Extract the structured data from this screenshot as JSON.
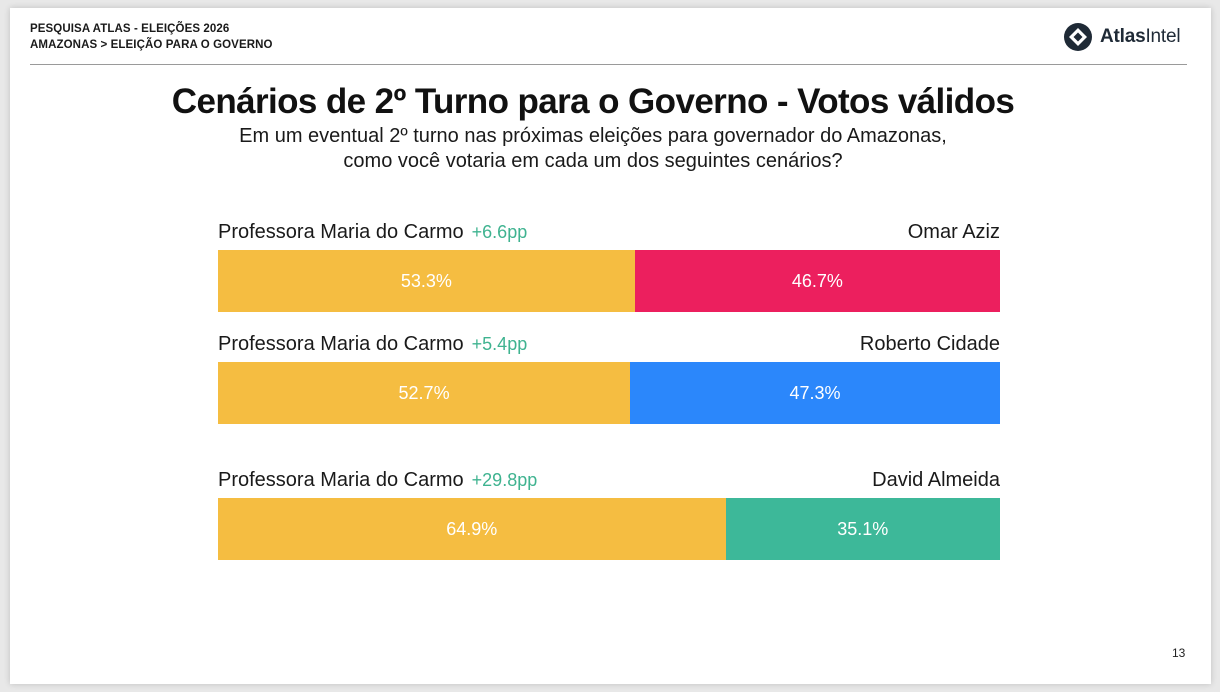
{
  "header": {
    "line1": "PESQUISA ATLAS - ELEIÇÕES 2026",
    "line2": "AMAZONAS > ELEIÇÃO PARA O GOVERNO"
  },
  "logo": {
    "text_bold": "Atlas",
    "text_regular": "Intel",
    "icon": "atlasintel-diamond-icon"
  },
  "page_number": "13",
  "chart_data": {
    "type": "bar",
    "title": "Cenários de 2º Turno para o Governo - Votos válidos",
    "subtitle_line1": "Em um eventual 2º turno nas próximas eleições para governador do Amazonas,",
    "subtitle_line2": "como você votaria em cada um dos seguintes cenários?",
    "orientation": "horizontal-stacked",
    "scenarios": [
      {
        "left_name": "Professora Maria do Carmo",
        "right_name": "Omar Aziz",
        "diff_label": "+6.6pp",
        "left_value": 53.3,
        "right_value": 46.7,
        "left_label": "53.3%",
        "right_label": "46.7%",
        "left_color": "#f5bd41",
        "right_color": "#ec1f5e"
      },
      {
        "left_name": "Professora Maria do Carmo",
        "right_name": "Roberto Cidade",
        "diff_label": "+5.4pp",
        "left_value": 52.7,
        "right_value": 47.3,
        "left_label": "52.7%",
        "right_label": "47.3%",
        "left_color": "#f5bd41",
        "right_color": "#2b87fb"
      },
      {
        "left_name": "Professora Maria do Carmo",
        "right_name": "David Almeida",
        "diff_label": "+29.8pp",
        "left_value": 64.9,
        "right_value": 35.1,
        "left_label": "64.9%",
        "right_label": "35.1%",
        "left_color": "#f5bd41",
        "right_color": "#3db899"
      }
    ],
    "diff_color": "#3fb390",
    "xlim": [
      0,
      100
    ]
  }
}
